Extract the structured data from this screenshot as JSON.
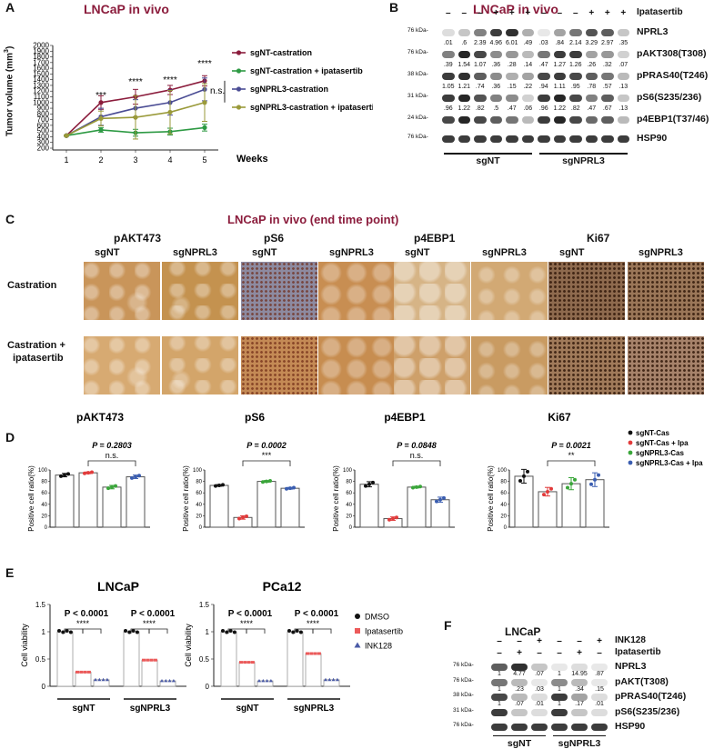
{
  "panels": {
    "A": {
      "label": "A",
      "title": "LNCaP in vivo",
      "ylabel": "Tumor volume (mm",
      "ylabel_sup": "3",
      "ylabel_close": ")",
      "xlabel": "Weeks",
      "ns": "n.s.",
      "sig": [
        "***",
        "****",
        "****",
        "****"
      ]
    },
    "B": {
      "label": "B",
      "title": "LNCaP in vivo",
      "treatment_label": "Ipatasertib",
      "signs": [
        "–",
        "–",
        "–",
        "+",
        "+",
        "+",
        "–",
        "–",
        "–",
        "+",
        "+",
        "+"
      ],
      "groups": [
        "sgNT",
        "sgNPRL3"
      ],
      "blots": [
        {
          "name": "NPRL3",
          "kda": "76 kDa-",
          "quant": [
            ".01",
            ".6",
            "2.39",
            "4.96",
            "6.01",
            ".49",
            ".03",
            ".84",
            "2.14",
            "3.29",
            "2.97",
            ".35"
          ]
        },
        {
          "name": "pAKT308(T308)",
          "kda": "76 kDa-",
          "quant": [
            ".39",
            "1.54",
            "1.07",
            ".36",
            ".28",
            ".14",
            ".47",
            "1.27",
            "1.26",
            ".26",
            ".32",
            ".07"
          ]
        },
        {
          "name": "pPRAS40(T246)",
          "kda": "38 kDa-",
          "quant": [
            "1.05",
            "1.21",
            ".74",
            ".36",
            ".15",
            ".22",
            ".94",
            "1.11",
            ".95",
            ".78",
            ".57",
            ".13"
          ]
        },
        {
          "name": "pS6(S235/236)",
          "kda": "31 kDa-",
          "quant": [
            ".96",
            "1.22",
            ".82",
            ".5",
            ".47",
            ".06",
            ".96",
            "1.22",
            ".82",
            ".47",
            ".67",
            ".13"
          ]
        },
        {
          "name": "p4EBP1(T37/46)",
          "kda": "24 kDa-",
          "quant": []
        },
        {
          "name": "HSP90",
          "kda": "76 kDa-",
          "quant": []
        }
      ]
    },
    "C": {
      "label": "C",
      "title": "LNCaP in vivo (end time point)",
      "markers": [
        "pAKT473",
        "pS6",
        "p4EBP1",
        "Ki67"
      ],
      "cols": [
        "sgNT",
        "sgNPRL3"
      ],
      "rows": [
        "Castration",
        "Castration +",
        "ipatasertib"
      ]
    },
    "D": {
      "label": "D",
      "ylabel": "Positive cell ratio(%)",
      "legend": [
        "sgNT-Cas",
        "sgNT-Cas + Ipa",
        "sgNPRL3-Cas",
        "sgNPRL3-Cas + Ipa"
      ],
      "charts": [
        {
          "title": "pAKT473",
          "p": "P = 0.2803",
          "sig": "n.s."
        },
        {
          "title": "pS6",
          "p": "P = 0.0002",
          "sig": "***"
        },
        {
          "title": "p4EBP1",
          "p": "P = 0.0848",
          "sig": "n.s."
        },
        {
          "title": "Ki67",
          "p": "P = 0.0021",
          "sig": "**"
        }
      ]
    },
    "E": {
      "label": "E",
      "ylabel": "Cell viability",
      "legend": [
        "DMSO",
        "Ipatasertib",
        "INK128"
      ],
      "charts": [
        {
          "title": "LNCaP",
          "p1": "P < 0.0001",
          "p2": "P < 0.0001",
          "sig": "****"
        },
        {
          "title": "PCa12",
          "p1": "P < 0.0001",
          "p2": "P < 0.0001",
          "sig": "****"
        }
      ],
      "groups": [
        "sgNT",
        "sgNPRL3"
      ]
    },
    "F": {
      "label": "F",
      "title": "LNCaP",
      "rows": [
        {
          "label": "INK128",
          "signs": [
            "–",
            "–",
            "+",
            "–",
            "–",
            "+"
          ]
        },
        {
          "label": "Ipatasertib",
          "signs": [
            "–",
            "+",
            "–",
            "–",
            "+",
            "–"
          ]
        }
      ],
      "groups": [
        "sgNT",
        "sgNPRL3"
      ],
      "blots": [
        {
          "name": "NPRL3",
          "kda": "76 kDa-",
          "quant": [
            "1",
            "4.77",
            ".07",
            "1",
            "14.95",
            ".87"
          ]
        },
        {
          "name": "pAKT(T308)",
          "kda": "76 kDa-",
          "quant": [
            "1",
            ".23",
            ".03",
            "1",
            ".34",
            ".15"
          ]
        },
        {
          "name": "pPRAS40(T246)",
          "kda": "38 kDa-",
          "quant": [
            "1",
            ".07",
            ".01",
            "1",
            ".17",
            ".01"
          ]
        },
        {
          "name": "pS6(S235/236)",
          "kda": "31 kDa-",
          "quant": []
        },
        {
          "name": "HSP90",
          "kda": "76 kDa-",
          "quant": []
        }
      ]
    }
  },
  "chart_data": [
    {
      "type": "line",
      "title": "LNCaP in vivo",
      "xlabel": "Weeks",
      "ylabel": "Tumor volume (mm3)",
      "x": [
        1,
        2,
        3,
        4,
        5
      ],
      "ylim": [
        0,
        2000
      ],
      "yticks": [
        200,
        300,
        400,
        500,
        600,
        700,
        800,
        900,
        1000,
        1100,
        1200,
        1300,
        1400,
        1500,
        1600,
        1700,
        1800,
        1900,
        2000
      ],
      "series": [
        {
          "name": "sgNT-castration",
          "color": "#8b1c3c",
          "values": [
            420,
            1000,
            1100,
            1220,
            1380
          ],
          "err": [
            10,
            120,
            130,
            80,
            90
          ]
        },
        {
          "name": "sgNT-castration + ipatasertib",
          "color": "#2e9a44",
          "values": [
            420,
            520,
            470,
            490,
            560
          ],
          "err": [
            10,
            40,
            60,
            60,
            60
          ]
        },
        {
          "name": "sgNPRL3-castration",
          "color": "#4a4c94",
          "values": [
            420,
            750,
            900,
            1000,
            1230
          ],
          "err": [
            10,
            150,
            150,
            220,
            200
          ]
        },
        {
          "name": "sgNPRL3-castration + ipatasertib",
          "color": "#9a9a3a",
          "values": [
            420,
            720,
            740,
            830,
            1000
          ],
          "err": [
            10,
            130,
            380,
            380,
            330
          ]
        }
      ]
    },
    {
      "type": "bar",
      "title": "pAKT473",
      "ylim": [
        0,
        100
      ],
      "categories": [
        "sgNT-Cas",
        "sgNT-Cas + Ipa",
        "sgNPRL3-Cas",
        "sgNPRL3-Cas + Ipa"
      ],
      "values": [
        91,
        95,
        70,
        88
      ],
      "colors": [
        "#111111",
        "#e23b3b",
        "#3aa63a",
        "#3a5db0"
      ]
    },
    {
      "type": "bar",
      "title": "pS6",
      "ylim": [
        0,
        100
      ],
      "categories": [
        "sgNT-Cas",
        "sgNT-Cas + Ipa",
        "sgNPRL3-Cas",
        "sgNPRL3-Cas + Ipa"
      ],
      "values": [
        73,
        17,
        80,
        68
      ],
      "colors": [
        "#111111",
        "#e23b3b",
        "#3aa63a",
        "#3a5db0"
      ]
    },
    {
      "type": "bar",
      "title": "p4EBP1",
      "ylim": [
        0,
        100
      ],
      "categories": [
        "sgNT-Cas",
        "sgNT-Cas + Ipa",
        "sgNPRL3-Cas",
        "sgNPRL3-Cas + Ipa"
      ],
      "values": [
        75,
        15,
        70,
        48
      ],
      "colors": [
        "#111111",
        "#e23b3b",
        "#3aa63a",
        "#3a5db0"
      ]
    },
    {
      "type": "bar",
      "title": "Ki67",
      "ylim": [
        0,
        100
      ],
      "categories": [
        "sgNT-Cas",
        "sgNT-Cas + Ipa",
        "sgNPRL3-Cas",
        "sgNPRL3-Cas + Ipa"
      ],
      "values": [
        89,
        62,
        76,
        83
      ],
      "colors": [
        "#111111",
        "#e23b3b",
        "#3aa63a",
        "#3a5db0"
      ]
    },
    {
      "type": "bar",
      "title": "LNCaP",
      "ylabel": "Cell viability",
      "ylim": [
        0,
        1.5
      ],
      "yticks": [
        0,
        0.5,
        1.0,
        1.5
      ],
      "groups": [
        "sgNT",
        "sgNPRL3"
      ],
      "series": [
        {
          "name": "DMSO",
          "values": [
            1.0,
            1.0
          ]
        },
        {
          "name": "Ipatasertib",
          "values": [
            0.26,
            0.48
          ]
        },
        {
          "name": "INK128",
          "values": [
            0.12,
            0.1
          ]
        }
      ]
    },
    {
      "type": "bar",
      "title": "PCa12",
      "ylabel": "Cell viability",
      "ylim": [
        0,
        1.5
      ],
      "yticks": [
        0,
        0.5,
        1.0,
        1.5
      ],
      "groups": [
        "sgNT",
        "sgNPRL3"
      ],
      "series": [
        {
          "name": "DMSO",
          "values": [
            1.0,
            1.0
          ]
        },
        {
          "name": "Ipatasertib",
          "values": [
            0.44,
            0.6
          ]
        },
        {
          "name": "INK128",
          "values": [
            0.1,
            0.12
          ]
        }
      ]
    }
  ]
}
